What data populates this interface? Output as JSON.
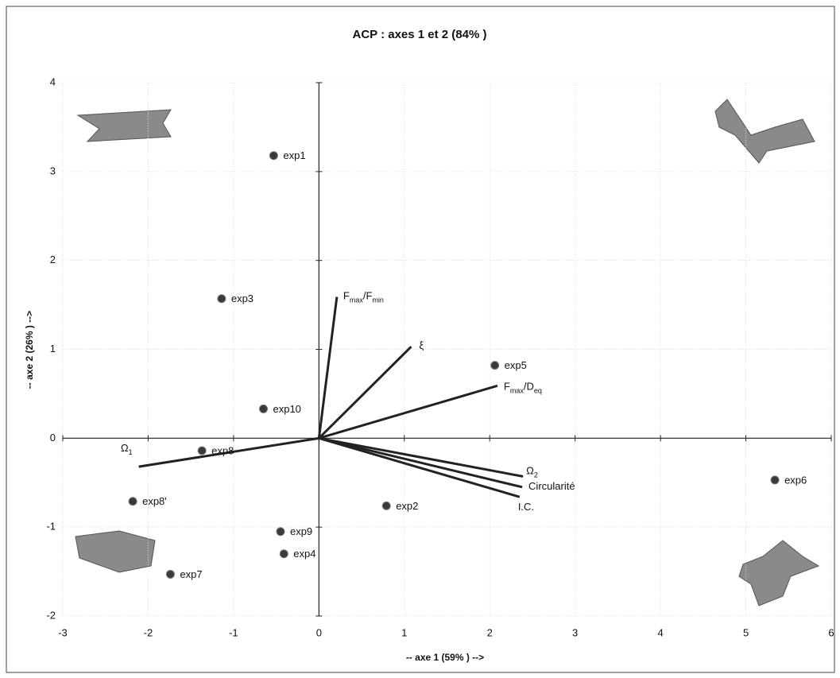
{
  "chart_data": {
    "type": "biplot",
    "title": "ACP : axes  1 et  2 (84% )",
    "x_label": "-- axe 1 (59% ) -->",
    "y_label": "-- axe 2 (26% ) -->",
    "xlim": [
      -3,
      6
    ],
    "ylim": [
      -2,
      4
    ],
    "xticks": [
      -3,
      -2,
      -1,
      0,
      1,
      2,
      3,
      4,
      5,
      6
    ],
    "yticks": [
      -2,
      -1,
      0,
      1,
      2,
      3,
      4
    ],
    "grid": true,
    "points": {
      "color": "#3a3a3a",
      "names": [
        "exp1",
        "exp3",
        "exp10",
        "exp8",
        "exp8'",
        "exp7",
        "exp9",
        "exp4",
        "exp2",
        "exp5",
        "exp6"
      ],
      "x": [
        -0.53,
        -1.14,
        -0.65,
        -1.37,
        -2.18,
        -1.74,
        -0.45,
        -0.41,
        0.79,
        2.06,
        5.34
      ],
      "y": [
        3.18,
        1.57,
        0.33,
        -0.14,
        -0.71,
        -1.53,
        -1.05,
        -1.3,
        -0.76,
        0.82,
        -0.47
      ]
    },
    "vectors": {
      "color": "#222222",
      "labels": [
        [
          {
            "text": "F"
          },
          {
            "text": "max",
            "sub": true
          },
          {
            "text": "/F"
          },
          {
            "text": "min",
            "sub": true
          }
        ],
        [
          {
            "text": "ξ"
          }
        ],
        [
          {
            "text": "F"
          },
          {
            "text": "max",
            "sub": true
          },
          {
            "text": "/D"
          },
          {
            "text": "eq",
            "sub": true
          }
        ],
        [
          {
            "text": "Ω"
          },
          {
            "text": "2",
            "sub": true
          }
        ],
        [
          {
            "text": "Circularité"
          }
        ],
        [
          {
            "text": "I.C."
          }
        ],
        [
          {
            "text": "Ω"
          },
          {
            "text": "1",
            "sub": true
          }
        ]
      ],
      "x": [
        0.21,
        1.08,
        2.09,
        2.39,
        2.38,
        2.35,
        -2.11
      ],
      "y": [
        1.59,
        1.03,
        0.59,
        -0.43,
        -0.55,
        -0.66,
        -0.32
      ]
    }
  }
}
